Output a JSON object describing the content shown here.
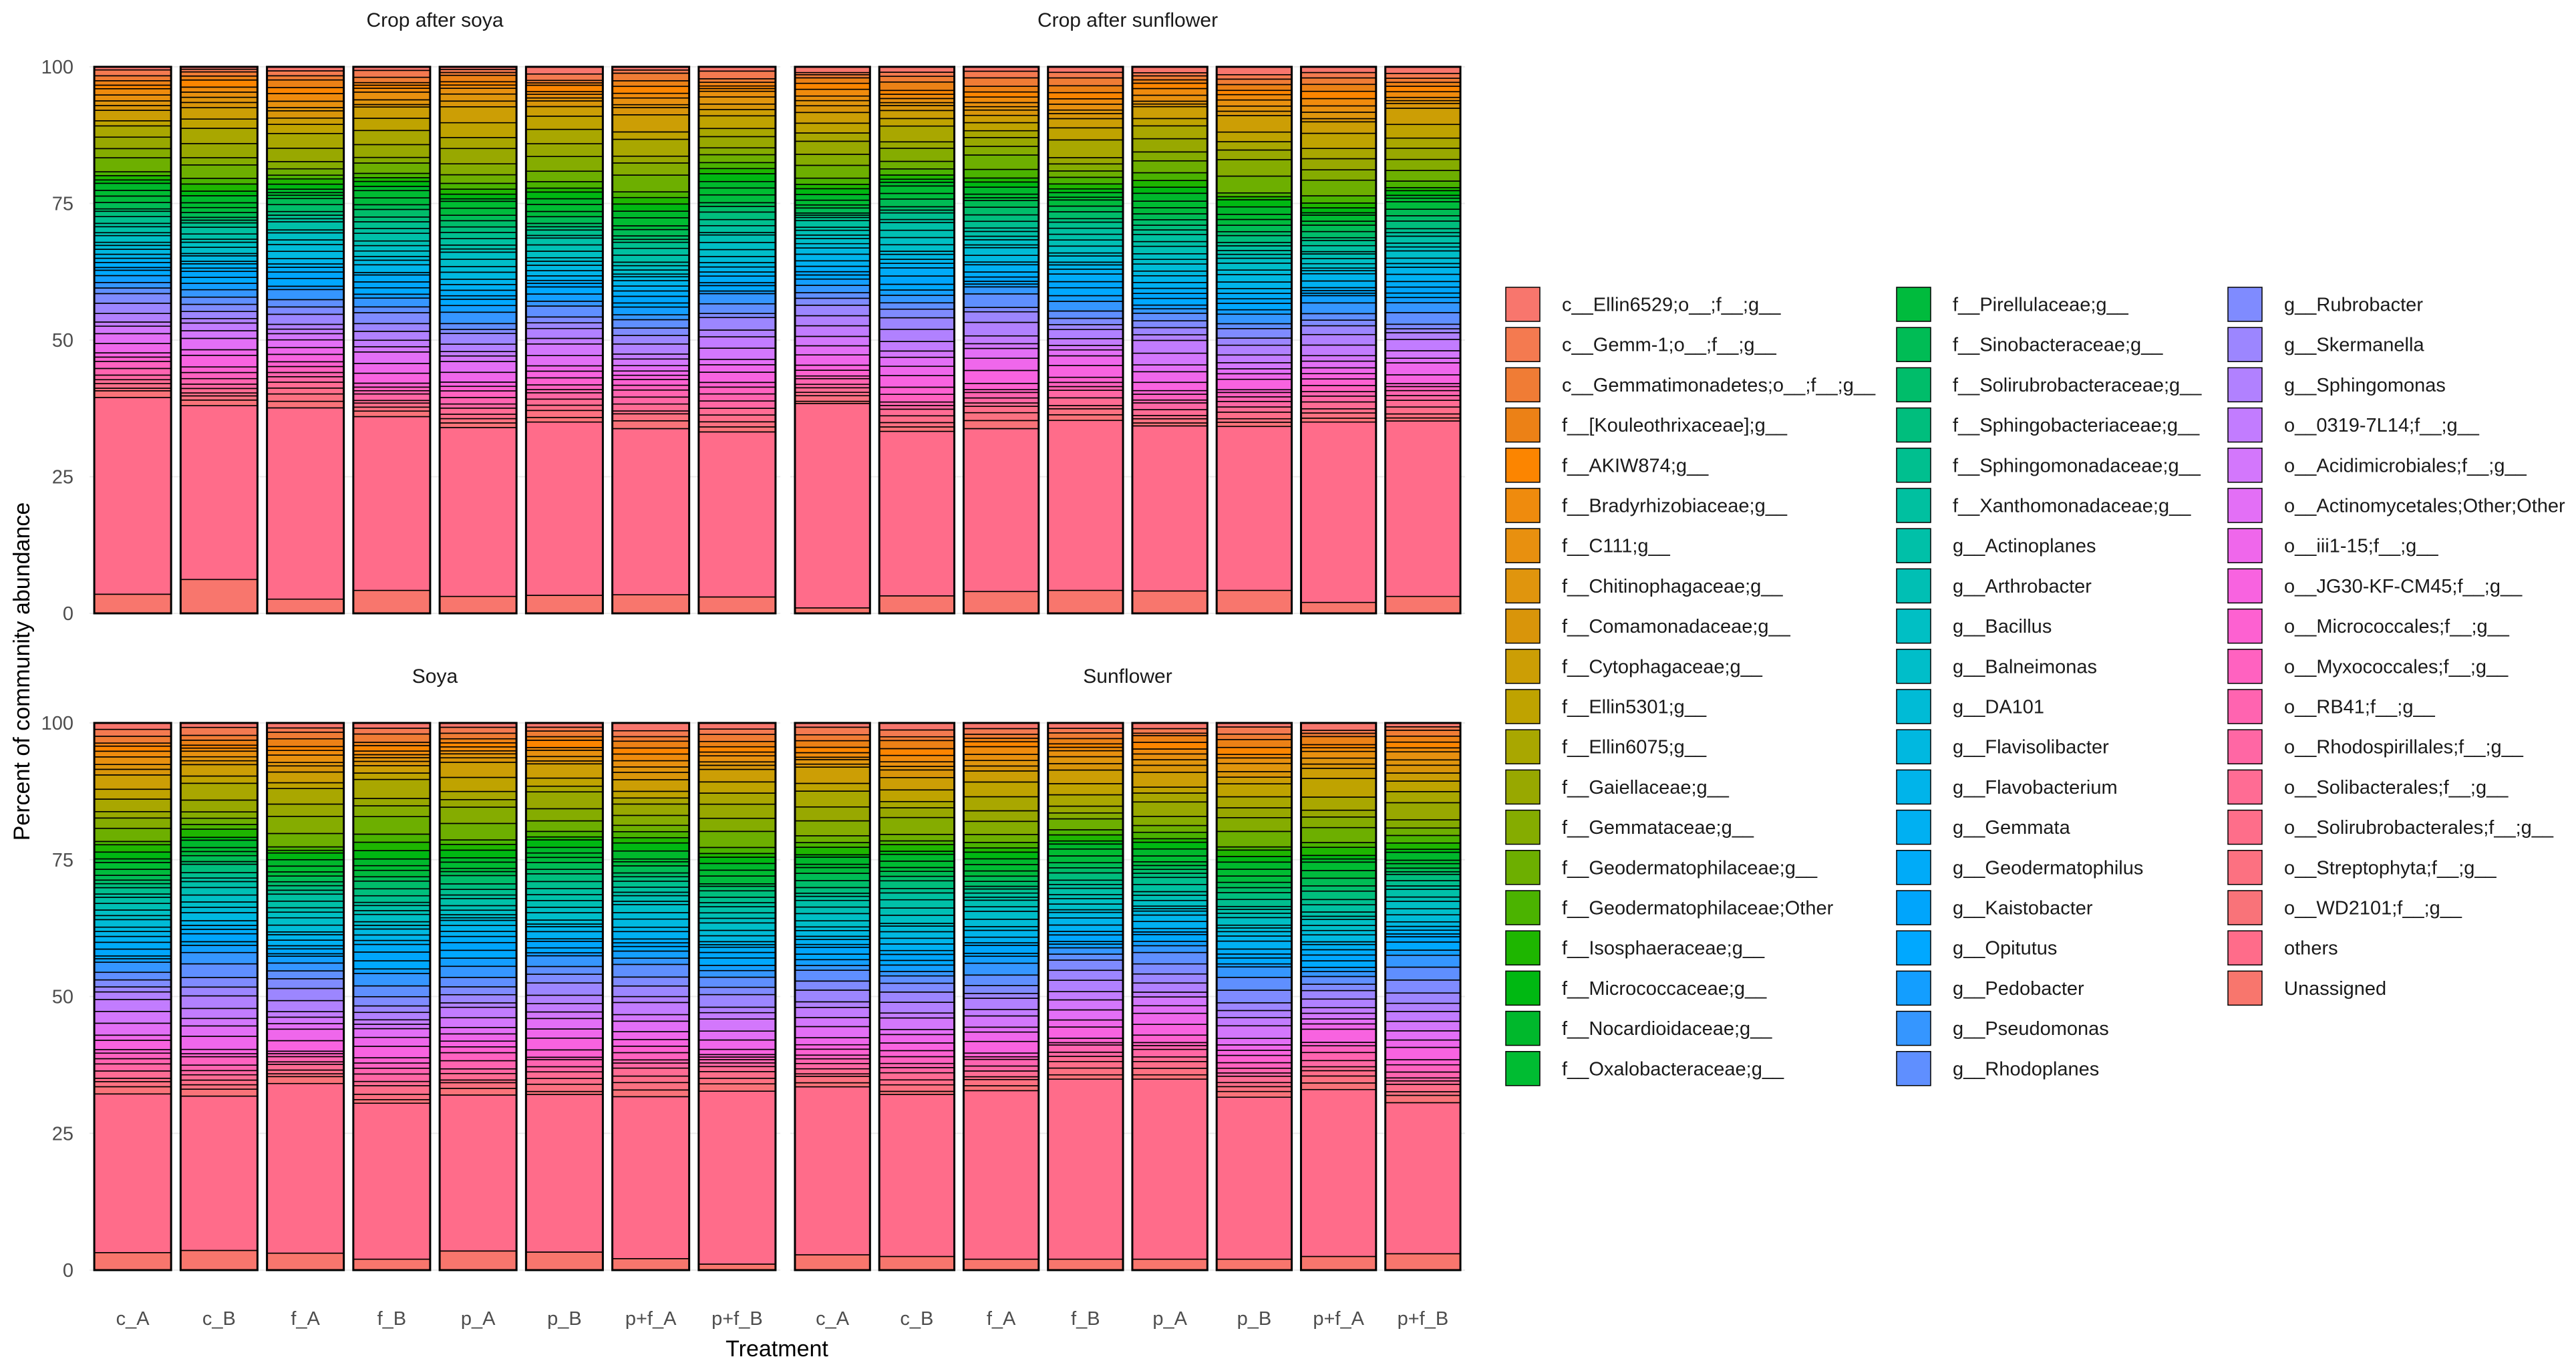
{
  "chart_data": {
    "type": "bar",
    "subtype": "stacked-100-percent-faceted",
    "xlabel": "Treatment",
    "ylabel": "Percent of community abundance",
    "ylim": [
      0,
      100
    ],
    "yticks": [
      0,
      25,
      50,
      75,
      100
    ],
    "grid": true,
    "legend_position": "right",
    "categories": [
      "c_A",
      "c_B",
      "f_A",
      "f_B",
      "p_A",
      "p_B",
      "p+f_A",
      "p+f_B"
    ],
    "panels": [
      {
        "title": "Crop after soya",
        "segments": [
          {
            "taxon": "Unassigned",
            "values": [
              3.5,
              6.2,
              2.6,
              4.2,
              3.1,
              3.3,
              3.4,
              3.0
            ]
          },
          {
            "taxon": "others",
            "values": [
              36.0,
              31.8,
              35.0,
              31.8,
              30.9,
              31.7,
              30.4,
              30.2
            ]
          }
        ]
      },
      {
        "title": "Crop after sunflower",
        "segments": [
          {
            "taxon": "Unassigned",
            "values": [
              1.0,
              3.2,
              4.0,
              4.2,
              4.1,
              4.2,
              2.0,
              3.1
            ]
          },
          {
            "taxon": "others",
            "values": [
              37.4,
              30.1,
              29.8,
              31.1,
              30.2,
              30.0,
              33.0,
              32.1
            ]
          }
        ]
      },
      {
        "title": "Soya",
        "segments": [
          {
            "taxon": "Unassigned",
            "values": [
              3.2,
              3.6,
              3.1,
              2.0,
              3.5,
              3.3,
              2.1,
              1.1
            ]
          },
          {
            "taxon": "others",
            "values": [
              29.0,
              28.2,
              31.0,
              28.5,
              28.5,
              28.8,
              29.6,
              31.6
            ]
          }
        ]
      },
      {
        "title": "Sunflower",
        "segments": [
          {
            "taxon": "Unassigned",
            "values": [
              2.8,
              2.5,
              2.0,
              2.0,
              2.0,
              2.0,
              2.5,
              3.0
            ]
          },
          {
            "taxon": "others",
            "values": [
              30.7,
              29.6,
              30.8,
              32.9,
              32.9,
              29.6,
              30.5,
              27.6
            ]
          }
        ]
      }
    ],
    "legend": [
      {
        "label": "c__Ellin6529;o__;f__;g__",
        "color": "#f8766d"
      },
      {
        "label": "c__Gemm-1;o__;f__;g__",
        "color": "#f47a50"
      },
      {
        "label": "c__Gemmatimonadetes;o__;f__;g__",
        "color": "#f07c35"
      },
      {
        "label": "f__[Kouleothrixaceae];g__",
        "color": "#ec8116"
      },
      {
        "label": "f__AKIW874;g__",
        "color": "#fc8500"
      },
      {
        "label": "f__Bradyrhizobiaceae;g__",
        "color": "#ef8b0d"
      },
      {
        "label": "f__C111;g__",
        "color": "#e8900f"
      },
      {
        "label": "f__Chitinophagaceae;g__",
        "color": "#e0950d"
      },
      {
        "label": "f__Comamonadaceae;g__",
        "color": "#d9950a"
      },
      {
        "label": "f__Cytophagaceae;g__",
        "color": "#cc9e05"
      },
      {
        "label": "f__Ellin5301;g__",
        "color": "#bfa300"
      },
      {
        "label": "f__Ellin6075;g__",
        "color": "#a9a700"
      },
      {
        "label": "f__Gaiellaceae;g__",
        "color": "#98a800"
      },
      {
        "label": "f__Gemmataceae;g__",
        "color": "#85ac00"
      },
      {
        "label": "f__Geodermatophilaceae;g__",
        "color": "#6daf00"
      },
      {
        "label": "f__Geodermatophilaceae;Other",
        "color": "#4bb300"
      },
      {
        "label": "f__Isosphaeraceae;g__",
        "color": "#1eb600"
      },
      {
        "label": "f__Micrococcaceae;g__",
        "color": "#00b812"
      },
      {
        "label": "f__Nocardioidaceae;g__",
        "color": "#00b82c"
      },
      {
        "label": "f__Oxalobacteraceae;g__",
        "color": "#00bc32"
      },
      {
        "label": "f__Pirellulaceae;g__",
        "color": "#00bb3d"
      },
      {
        "label": "f__Sinobacteraceae;g__",
        "color": "#00bc55"
      },
      {
        "label": "f__Solirubrobacteraceae;g__",
        "color": "#00bd6a"
      },
      {
        "label": "f__Sphingobacteriaceae;g__",
        "color": "#00be7d"
      },
      {
        "label": "f__Sphingomonadaceae;g__",
        "color": "#00bf8f"
      },
      {
        "label": "f__Xanthomonadaceae;g__",
        "color": "#00c0a0"
      },
      {
        "label": "g__Actinoplanes",
        "color": "#00c0a8"
      },
      {
        "label": "g__Arthrobacter",
        "color": "#00bfb4"
      },
      {
        "label": "g__Bacillus",
        "color": "#00bfc4"
      },
      {
        "label": "g__Balneimonas",
        "color": "#00bec9"
      },
      {
        "label": "g__DA101",
        "color": "#00bbd6"
      },
      {
        "label": "g__Flavisolibacter",
        "color": "#00b8e0"
      },
      {
        "label": "g__Flavobacterium",
        "color": "#00b4ea"
      },
      {
        "label": "g__Gemmata",
        "color": "#00b0f2"
      },
      {
        "label": "g__Geodermatophilus",
        "color": "#00abf8"
      },
      {
        "label": "g__Kaistobacter",
        "color": "#00a5fc"
      },
      {
        "label": "g__Opitutus",
        "color": "#00a8ff"
      },
      {
        "label": "g__Pedobacter",
        "color": "#139eff"
      },
      {
        "label": "g__Pseudomonas",
        "color": "#3596ff"
      },
      {
        "label": "g__Rhodoplanes",
        "color": "#5f8fff"
      },
      {
        "label": "g__Rubrobacter",
        "color": "#7f8bff"
      },
      {
        "label": "g__Skermanella",
        "color": "#9c86ff"
      },
      {
        "label": "g__Sphingomonas",
        "color": "#b181ff"
      },
      {
        "label": "o__0319-7L14;f__;g__",
        "color": "#c27cff"
      },
      {
        "label": "o__Acidimicrobiales;f__;g__",
        "color": "#d377fc"
      },
      {
        "label": "o__Actinomycetales;Other;Other",
        "color": "#e36ff6"
      },
      {
        "label": "o__iii1-15;f__;g__",
        "color": "#ef67eb"
      },
      {
        "label": "o__JG30-KF-CM45;f__;g__",
        "color": "#f863e0"
      },
      {
        "label": "o__Micrococcales;f__;g__",
        "color": "#fd61d1"
      },
      {
        "label": "o__Myxococcales;f__;g__",
        "color": "#ff62c0"
      },
      {
        "label": "o__RB41;f__;g__",
        "color": "#ff64b0"
      },
      {
        "label": "o__Rhodospirillales;f__;g__",
        "color": "#ff67a4"
      },
      {
        "label": "o__Solibacterales;f__;g__",
        "color": "#ff6c94"
      },
      {
        "label": "o__Solirubrobacterales;f__;g__",
        "color": "#fe6e8a"
      },
      {
        "label": "o__Streptophyta;f__;g__",
        "color": "#fc7181"
      },
      {
        "label": "o__WD2101;f__;g__",
        "color": "#f97379"
      },
      {
        "label": "others",
        "color": "#ff6c8a"
      },
      {
        "label": "Unassigned",
        "color": "#f8766d"
      }
    ]
  }
}
